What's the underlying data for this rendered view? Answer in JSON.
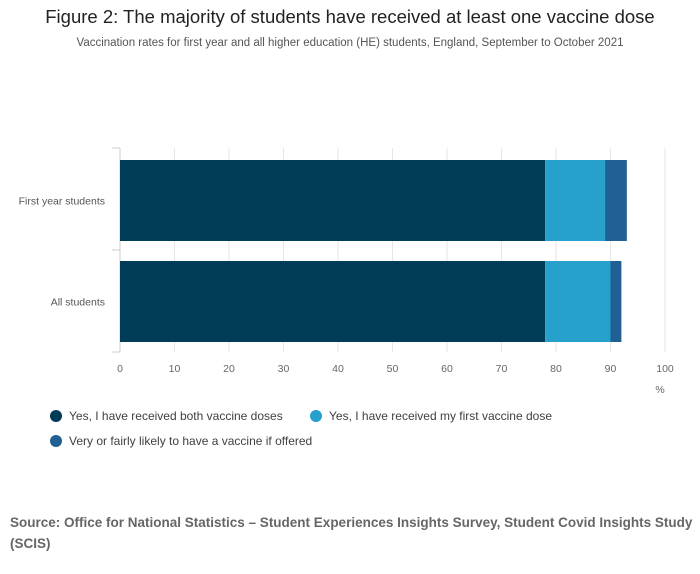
{
  "chart_data": {
    "type": "bar",
    "orientation": "horizontal",
    "stacked": true,
    "title": "Figure 2: The majority of students have received at least one vaccine dose",
    "subtitle": "Vaccination rates for first year and all higher education (HE) students, England, September to October 2021",
    "categories": [
      "First year students",
      "All students"
    ],
    "series": [
      {
        "name": "Yes, I have received both vaccine doses",
        "values": [
          78,
          78
        ],
        "color": "#003c57"
      },
      {
        "name": "Yes, I have received my first vaccine dose",
        "values": [
          11,
          12
        ],
        "color": "#27a0cc"
      },
      {
        "name": "Very or fairly likely to have a vaccine if offered",
        "values": [
          4,
          2
        ],
        "color": "#206095"
      }
    ],
    "xticks": [
      "0",
      "10",
      "20",
      "30",
      "40",
      "50",
      "60",
      "70",
      "80",
      "90",
      "100"
    ],
    "xlim": [
      0,
      100
    ],
    "xlabel": "%",
    "ylabel": "",
    "grid": true,
    "legend": "bottom-left"
  },
  "source": "Source: Office for National Statistics – Student Experiences Insights Survey, Student Covid Insights Study (SCIS)"
}
